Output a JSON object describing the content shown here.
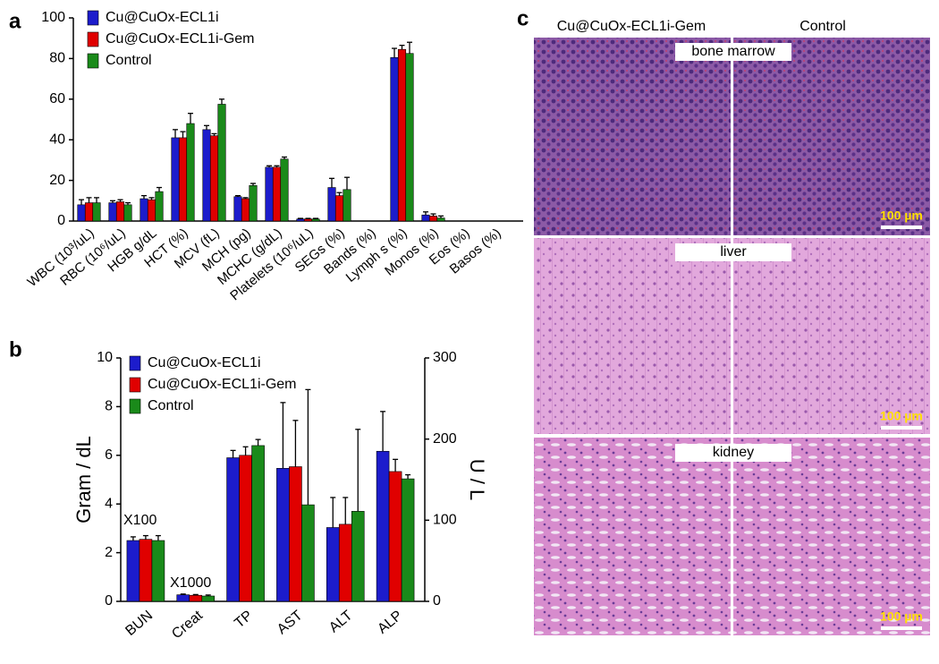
{
  "chart_data": [
    {
      "type": "bar",
      "label": "a",
      "categories": [
        "WBC (10³/uL)",
        "RBC (10⁶/uL)",
        "HGB g/dL",
        "HCT (%)",
        "MCV (fL)",
        "MCH (pg)",
        "MCHC (g/dL)",
        "Platelets (10⁶/uL)",
        "SEGs (%)",
        "Bands (%)",
        "Lymph s (%)",
        "Monos (%)",
        "Eos (%)",
        "Basos (%)"
      ],
      "series": [
        {
          "name": "Cu@CuOx-ECL1i",
          "color": "#1c1ccc",
          "values": [
            8,
            9,
            11,
            41,
            45,
            12,
            26.5,
            1,
            16.5,
            0,
            80.5,
            3,
            0,
            0
          ],
          "errors": [
            2.5,
            1,
            1.5,
            4,
            2,
            0.5,
            0.7,
            0.3,
            4.5,
            0,
            4.5,
            1.5,
            0,
            0
          ]
        },
        {
          "name": "Cu@CuOx-ECL1i-Gem",
          "color": "#e00000",
          "values": [
            9,
            9.5,
            10.5,
            41,
            42,
            11,
            26.5,
            1,
            12.5,
            0,
            84.5,
            2.5,
            0,
            0
          ],
          "errors": [
            2.5,
            1,
            1,
            3,
            1,
            0.5,
            0.7,
            0.3,
            1.5,
            0,
            2,
            1,
            0,
            0
          ]
        },
        {
          "name": "Control",
          "color": "#1a8a1a",
          "values": [
            9,
            8,
            14.5,
            48,
            57.5,
            17.5,
            30.5,
            1,
            15.5,
            0,
            82.5,
            1.5,
            0,
            0
          ],
          "errors": [
            2.5,
            1,
            2,
            5,
            2.5,
            1,
            1,
            0.3,
            6,
            0,
            5.5,
            1,
            0,
            0
          ]
        }
      ],
      "ylim": [
        0,
        100
      ],
      "yticks": [
        0,
        20,
        40,
        60,
        80,
        100
      ]
    },
    {
      "type": "bar",
      "label": "b",
      "ylabel": "Gram / dL",
      "y2label": "U / L",
      "categories": [
        "BUN",
        "Creat",
        "TP",
        "AST",
        "ALT",
        "ALP"
      ],
      "annotations": [
        "X100",
        "X1000"
      ],
      "series": [
        {
          "name": "Cu@CuOx-ECL1i",
          "color": "#1c1ccc",
          "values": [
            2.5,
            0.27,
            5.9,
            null,
            null,
            null
          ],
          "errors": [
            0.15,
            0.03,
            0.3,
            null,
            null,
            null
          ]
        },
        {
          "name": "Cu@CuOx-ECL1i-Gem",
          "color": "#e00000",
          "values": [
            2.55,
            0.25,
            6.0,
            null,
            null,
            null
          ],
          "errors": [
            0.15,
            0.03,
            0.35,
            null,
            null,
            null
          ]
        },
        {
          "name": "Control",
          "color": "#1a8a1a",
          "values": [
            2.5,
            0.22,
            6.4,
            null,
            null,
            null
          ],
          "errors": [
            0.2,
            0.04,
            0.25,
            null,
            null,
            null
          ]
        },
        {
          "name": "Cu@CuOx-ECL1i",
          "color": "#1c1ccc",
          "axis": "y2",
          "values": [
            null,
            null,
            null,
            164,
            91,
            185
          ],
          "errors": [
            null,
            null,
            null,
            81,
            37,
            49
          ]
        },
        {
          "name": "Cu@CuOx-ECL1i-Gem",
          "color": "#e00000",
          "axis": "y2",
          "values": [
            null,
            null,
            null,
            166,
            95,
            160
          ],
          "errors": [
            null,
            null,
            null,
            57,
            33,
            15
          ]
        },
        {
          "name": "Control",
          "color": "#1a8a1a",
          "axis": "y2",
          "values": [
            null,
            null,
            null,
            119,
            111,
            151
          ],
          "errors": [
            null,
            null,
            null,
            142,
            101,
            5
          ]
        }
      ],
      "ylim": [
        0,
        10
      ],
      "yticks": [
        0,
        2,
        4,
        6,
        8,
        10
      ],
      "y2lim": [
        0,
        300
      ],
      "y2ticks": [
        0,
        100,
        200,
        300
      ]
    }
  ],
  "panel_c": {
    "label": "c",
    "columns": [
      "Cu@CuOx-ECL1i-Gem",
      "Control"
    ],
    "rows": [
      "bone marrow",
      "liver",
      "kidney"
    ],
    "scale_bars": [
      "100 µm",
      "100 µm",
      "100 µm"
    ]
  }
}
